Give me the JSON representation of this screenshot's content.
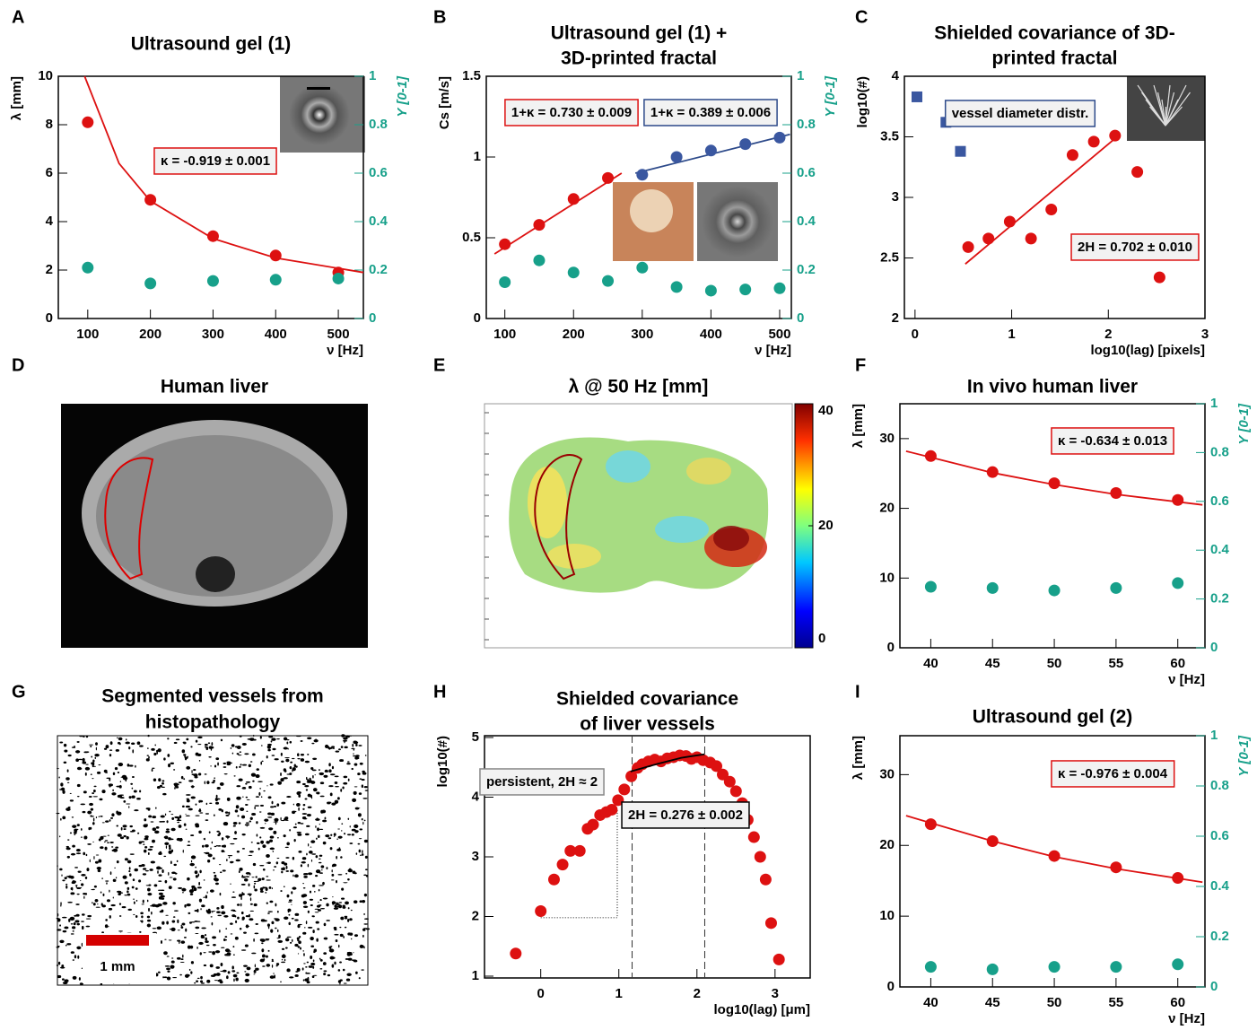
{
  "chart_data": [
    {
      "type": "scatter",
      "label": "A",
      "title": "Ultrasound gel (1)",
      "xlabel": "ν [Hz]",
      "ylabel": "λ [mm]",
      "y2label": "Y [0-1]",
      "xlim": [
        53,
        540
      ],
      "xticks": [
        100,
        200,
        300,
        400,
        500
      ],
      "ylim": [
        0,
        10
      ],
      "yticks": [
        0,
        2,
        4,
        6,
        8,
        10
      ],
      "y2lim": [
        0,
        1
      ],
      "y2ticks": [
        0,
        0.2,
        0.4,
        0.6,
        0.8,
        1
      ],
      "y2color": "#17a08a",
      "series": [
        {
          "style": "line",
          "color": "#dd1111",
          "x": [
            95,
            150,
            200,
            300,
            400,
            540
          ],
          "values": [
            10,
            6.4,
            4.85,
            3.3,
            2.5,
            1.9
          ]
        },
        {
          "style": "circle",
          "color": "#dd1111",
          "x": [
            100,
            200,
            300,
            400,
            500
          ],
          "values": [
            8.1,
            4.9,
            3.4,
            2.6,
            1.9
          ]
        },
        {
          "style": "circle",
          "color": "#17a08a",
          "axis": "y2",
          "x": [
            100,
            200,
            300,
            400,
            500
          ],
          "values": [
            0.21,
            0.145,
            0.155,
            0.16,
            0.165
          ]
        }
      ],
      "annotations": [
        {
          "text": "κ = -0.919 ± 0.001",
          "color": "#dd1111"
        }
      ]
    },
    {
      "type": "scatter",
      "label": "B",
      "title": [
        "Ultrasound gel (1) +",
        "3D-printed fractal"
      ],
      "xlabel": "ν [Hz]",
      "ylabel": "Cs [m/s]",
      "y2label": "Y [0-1]",
      "xlim": [
        73,
        517
      ],
      "xticks": [
        100,
        200,
        300,
        400,
        500
      ],
      "ylim": [
        0,
        1.5
      ],
      "yticks": [
        0,
        0.5,
        1,
        1.5
      ],
      "y2lim": [
        0,
        1
      ],
      "y2ticks": [
        0,
        0.2,
        0.4,
        0.6,
        0.8,
        1
      ],
      "y2color": "#17a08a",
      "series": [
        {
          "style": "line",
          "color": "#dd1111",
          "x": [
            85,
            270
          ],
          "values": [
            0.4,
            0.9
          ]
        },
        {
          "style": "line",
          "color": "#2d4a8a",
          "x": [
            290,
            515
          ],
          "values": [
            0.9,
            1.14
          ]
        },
        {
          "style": "circle",
          "color": "#dd1111",
          "x": [
            100,
            150,
            200,
            250
          ],
          "values": [
            0.46,
            0.58,
            0.74,
            0.87
          ]
        },
        {
          "style": "circle",
          "color": "#3a57a0",
          "x": [
            300,
            350,
            400,
            450,
            500
          ],
          "values": [
            0.89,
            1.0,
            1.04,
            1.08,
            1.12
          ]
        },
        {
          "style": "circle",
          "color": "#17a08a",
          "axis": "y2",
          "x": [
            100,
            150,
            200,
            250,
            300,
            350,
            400,
            450,
            500
          ],
          "values": [
            0.15,
            0.24,
            0.19,
            0.155,
            0.21,
            0.13,
            0.115,
            0.12,
            0.125
          ]
        }
      ],
      "annotations": [
        {
          "text": "1+κ =  0.730 ± 0.009",
          "color": "#dd1111"
        },
        {
          "text": "1+κ =  0.389 ± 0.006",
          "color": "#2d4a8a"
        }
      ]
    },
    {
      "type": "scatter",
      "label": "C",
      "title": [
        "Shielded covariance of 3D-",
        "printed fractal"
      ],
      "xlabel": "log10(lag) [pixels]",
      "ylabel": "log10(#)",
      "xlim": [
        -0.11,
        3
      ],
      "xticks": [
        0,
        1,
        2,
        3
      ],
      "ylim": [
        2,
        4
      ],
      "yticks": [
        2,
        2.5,
        3,
        3.5,
        4
      ],
      "series": [
        {
          "style": "line",
          "color": "#dd1111",
          "x": [
            0.52,
            2.12
          ],
          "values": [
            2.45,
            3.52
          ]
        },
        {
          "style": "square",
          "color": "#3a57a0",
          "x": [
            0.02,
            0.32,
            0.47
          ],
          "values": [
            3.83,
            3.62,
            3.38
          ]
        },
        {
          "style": "circle",
          "color": "#dd1111",
          "x": [
            0.55,
            0.76,
            0.98,
            1.2,
            1.41,
            1.63,
            1.85,
            2.07,
            2.3,
            2.53
          ],
          "values": [
            2.59,
            2.66,
            2.8,
            2.66,
            2.9,
            3.35,
            3.46,
            3.51,
            3.21,
            2.34
          ]
        }
      ],
      "annotations": [
        {
          "text": "vessel diameter distr.",
          "color": "#2d4a8a"
        },
        {
          "text": "2H =  0.702 ± 0.010",
          "color": "#dd1111"
        }
      ]
    },
    {
      "type": "image",
      "label": "D",
      "title": "Human liver"
    },
    {
      "type": "heatmap",
      "label": "E",
      "title": "λ @ 50 Hz [mm]",
      "clim": [
        0,
        40
      ],
      "cticks": [
        0,
        20,
        40
      ]
    },
    {
      "type": "scatter",
      "label": "F",
      "title": "In vivo human liver",
      "xlabel": "ν [Hz]",
      "ylabel": "λ [mm]",
      "y2label": "Y [0-1]",
      "xlim": [
        37.5,
        62.2
      ],
      "xticks": [
        40,
        45,
        50,
        55,
        60
      ],
      "ylim": [
        0,
        35
      ],
      "yticks": [
        0,
        10,
        20,
        30
      ],
      "y2lim": [
        0,
        1
      ],
      "y2ticks": [
        0,
        0.2,
        0.4,
        0.6,
        0.8,
        1
      ],
      "y2color": "#17a08a",
      "series": [
        {
          "style": "line",
          "color": "#dd1111",
          "x": [
            38,
            45,
            50,
            55,
            62
          ],
          "values": [
            28.2,
            25.1,
            23.4,
            22.0,
            20.5
          ]
        },
        {
          "style": "circle",
          "color": "#dd1111",
          "x": [
            40,
            45,
            50,
            55,
            60
          ],
          "values": [
            27.5,
            25.2,
            23.6,
            22.2,
            21.2
          ]
        },
        {
          "style": "circle",
          "color": "#17a08a",
          "axis": "y2",
          "x": [
            40,
            45,
            50,
            55,
            60
          ],
          "values": [
            0.25,
            0.245,
            0.235,
            0.245,
            0.265
          ]
        }
      ],
      "annotations": [
        {
          "text": "κ = -0.634 ± 0.013",
          "color": "#dd1111"
        }
      ]
    },
    {
      "type": "image",
      "label": "G",
      "title": [
        "Segmented vessels from",
        "histopathology"
      ],
      "scalebar": "1 mm"
    },
    {
      "type": "scatter",
      "label": "H",
      "title": [
        "Shielded covariance",
        "of liver vessels"
      ],
      "xlabel": "log10(lag) [μm]",
      "ylabel": "log10(#)",
      "xlim": [
        -0.72,
        3.45
      ],
      "xticks": [
        0,
        1,
        2,
        3
      ],
      "ylim": [
        0.97,
        5.03
      ],
      "yticks": [
        1,
        2,
        3,
        4,
        5
      ],
      "vlines": [
        1.17,
        2.1
      ],
      "series": [
        {
          "style": "dotted",
          "color": "#333333",
          "x": [
            0,
            0.98,
            0.98
          ],
          "values": [
            1.98,
            1.98,
            3.8
          ]
        },
        {
          "style": "circle",
          "color": "#dd1111",
          "x": [
            -0.32,
            0,
            0.17,
            0.28,
            0.38,
            0.5,
            0.6,
            0.67,
            0.76,
            0.84,
            0.91,
            0.99,
            1.07,
            1.16,
            1.24,
            1.3,
            1.38,
            1.46,
            1.54,
            1.62,
            1.7,
            1.78,
            1.86,
            1.93,
            2.0,
            2.08,
            2.17,
            2.25,
            2.33,
            2.42,
            2.5,
            2.58,
            2.65,
            2.73,
            2.81,
            2.88,
            2.95,
            3.05
          ],
          "values": [
            1.38,
            2.09,
            2.62,
            2.87,
            3.1,
            3.1,
            3.47,
            3.54,
            3.7,
            3.75,
            3.79,
            3.95,
            4.13,
            4.35,
            4.49,
            4.55,
            4.6,
            4.63,
            4.6,
            4.65,
            4.67,
            4.7,
            4.69,
            4.64,
            4.67,
            4.62,
            4.58,
            4.52,
            4.38,
            4.26,
            4.1,
            3.9,
            3.62,
            3.33,
            3.0,
            2.62,
            1.89,
            1.28
          ]
        },
        {
          "style": "line",
          "color": "#000000",
          "x": [
            1.15,
            1.5,
            1.8,
            2.1
          ],
          "values": [
            4.43,
            4.56,
            4.66,
            4.72
          ]
        }
      ],
      "annotations": [
        {
          "text": "persistent, 2H ≈ 2",
          "color": "#888888"
        },
        {
          "text": "2H =  0.276 ± 0.002",
          "color": "#000000"
        }
      ]
    },
    {
      "type": "scatter",
      "label": "I",
      "title": "Ultrasound gel (2)",
      "xlabel": "ν [Hz]",
      "ylabel": "λ [mm]",
      "y2label": "Y [0-1]",
      "xlim": [
        37.5,
        62.2
      ],
      "xticks": [
        40,
        45,
        50,
        55,
        60
      ],
      "ylim": [
        0,
        35.5
      ],
      "yticks": [
        0,
        10,
        20,
        30
      ],
      "y2lim": [
        0,
        1
      ],
      "y2ticks": [
        0,
        0.2,
        0.4,
        0.6,
        0.8,
        1
      ],
      "y2color": "#17a08a",
      "series": [
        {
          "style": "line",
          "color": "#dd1111",
          "x": [
            38,
            45,
            50,
            55,
            62
          ],
          "values": [
            24.2,
            20.6,
            18.4,
            16.7,
            14.8
          ]
        },
        {
          "style": "circle",
          "color": "#dd1111",
          "x": [
            40,
            45,
            50,
            55,
            60
          ],
          "values": [
            23,
            20.6,
            18.5,
            16.9,
            15.4
          ]
        },
        {
          "style": "circle",
          "color": "#17a08a",
          "axis": "y2",
          "x": [
            40,
            45,
            50,
            55,
            60
          ],
          "values": [
            0.08,
            0.07,
            0.08,
            0.08,
            0.09
          ]
        }
      ],
      "annotations": [
        {
          "text": "κ = -0.976 ± 0.004",
          "color": "#dd1111"
        }
      ]
    }
  ]
}
